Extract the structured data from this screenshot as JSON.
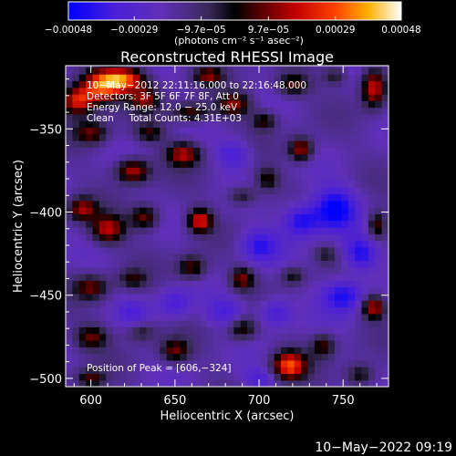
{
  "chart_data": {
    "type": "heatmap",
    "title": "Reconstructed RHESSI Image",
    "xlabel": "Heliocentric X (arcsec)",
    "ylabel": "Heliocentric Y (arcsec)",
    "xlim": [
      585,
      777
    ],
    "ylim": [
      -505,
      -312
    ],
    "x_ticks": [
      {
        "value": 600,
        "label": "600"
      },
      {
        "value": 650,
        "label": "650"
      },
      {
        "value": 700,
        "label": "700"
      },
      {
        "value": 750,
        "label": "750"
      }
    ],
    "y_ticks": [
      {
        "value": -350,
        "label": "−350"
      },
      {
        "value": -400,
        "label": "−400"
      },
      {
        "value": -450,
        "label": "−450"
      },
      {
        "value": -500,
        "label": "−500"
      }
    ],
    "colorbar": {
      "unit_label": "(photons cm⁻² s⁻¹ asec⁻²)",
      "min": -0.00048,
      "max": 0.00048,
      "ticks": [
        {
          "value": -0.00048,
          "label": "−0.00048"
        },
        {
          "value": -0.00029,
          "label": "−0.00029"
        },
        {
          "value": -9.7e-05,
          "label": "−9.7e−05"
        },
        {
          "value": 9.7e-05,
          "label": "9.7e−05"
        },
        {
          "value": 0.00029,
          "label": "0.00029"
        },
        {
          "value": 0.00048,
          "label": "0.00048"
        }
      ]
    },
    "annotations": [
      "10−May−2012 22:11:16.000 to 22:16:48.000",
      "Detectors: 3F 5F 6F 7F 8F, Att 0",
      "Energy Range: 12.0 − 25.0 keV",
      "Clean     Total Counts: 4.31E+03"
    ],
    "peak_label": "Position of Peak = [606,−324]",
    "peak": [
      606,
      -324
    ],
    "sources": [
      {
        "x": 606,
        "y": -324,
        "amp": 1.0,
        "sx": 9,
        "sy": 7
      },
      {
        "x": 592,
        "y": -333,
        "amp": 0.85,
        "sx": 7,
        "sy": 6
      },
      {
        "x": 620,
        "y": -320,
        "amp": 0.9,
        "sx": 9,
        "sy": 5
      },
      {
        "x": 632,
        "y": -332,
        "amp": 0.6,
        "sx": 6,
        "sy": 5
      },
      {
        "x": 670,
        "y": -318,
        "amp": 0.55,
        "sx": 6,
        "sy": 4
      },
      {
        "x": 600,
        "y": -352,
        "amp": 0.55,
        "sx": 7,
        "sy": 5
      },
      {
        "x": 635,
        "y": -352,
        "amp": 0.45,
        "sx": 6,
        "sy": 4
      },
      {
        "x": 625,
        "y": -375,
        "amp": 0.75,
        "sx": 7,
        "sy": 5
      },
      {
        "x": 655,
        "y": -365,
        "amp": 0.7,
        "sx": 7,
        "sy": 5
      },
      {
        "x": 660,
        "y": -340,
        "amp": 0.55,
        "sx": 8,
        "sy": 4
      },
      {
        "x": 685,
        "y": -335,
        "amp": 0.65,
        "sx": 7,
        "sy": 5
      },
      {
        "x": 703,
        "y": -345,
        "amp": 0.45,
        "sx": 5,
        "sy": 4
      },
      {
        "x": 720,
        "y": -323,
        "amp": 0.55,
        "sx": 7,
        "sy": 5
      },
      {
        "x": 745,
        "y": -318,
        "amp": 0.35,
        "sx": 5,
        "sy": 4
      },
      {
        "x": 768,
        "y": -325,
        "amp": 0.8,
        "sx": 5,
        "sy": 8
      },
      {
        "x": 725,
        "y": -362,
        "amp": 0.7,
        "sx": 5,
        "sy": 5
      },
      {
        "x": 595,
        "y": -398,
        "amp": 0.65,
        "sx": 6,
        "sy": 5
      },
      {
        "x": 610,
        "y": -410,
        "amp": 0.75,
        "sx": 7,
        "sy": 6
      },
      {
        "x": 632,
        "y": -403,
        "amp": 0.6,
        "sx": 6,
        "sy": 5
      },
      {
        "x": 665,
        "y": -405,
        "amp": 0.85,
        "sx": 5,
        "sy": 5
      },
      {
        "x": 690,
        "y": -390,
        "amp": 0.4,
        "sx": 6,
        "sy": 4
      },
      {
        "x": 705,
        "y": -380,
        "amp": 0.45,
        "sx": 5,
        "sy": 5
      },
      {
        "x": 600,
        "y": -445,
        "amp": 0.55,
        "sx": 7,
        "sy": 5
      },
      {
        "x": 625,
        "y": -440,
        "amp": 0.4,
        "sx": 6,
        "sy": 4
      },
      {
        "x": 660,
        "y": -433,
        "amp": 0.55,
        "sx": 6,
        "sy": 5
      },
      {
        "x": 690,
        "y": -440,
        "amp": 0.6,
        "sx": 5,
        "sy": 5
      },
      {
        "x": 720,
        "y": -438,
        "amp": 0.4,
        "sx": 5,
        "sy": 4
      },
      {
        "x": 740,
        "y": -425,
        "amp": 0.3,
        "sx": 5,
        "sy": 4
      },
      {
        "x": 770,
        "y": -408,
        "amp": 0.55,
        "sx": 4,
        "sy": 6
      },
      {
        "x": 768,
        "y": -457,
        "amp": 0.75,
        "sx": 5,
        "sy": 5
      },
      {
        "x": 600,
        "y": -475,
        "amp": 0.55,
        "sx": 7,
        "sy": 5
      },
      {
        "x": 630,
        "y": -472,
        "amp": 0.35,
        "sx": 6,
        "sy": 4
      },
      {
        "x": 650,
        "y": -483,
        "amp": 0.55,
        "sx": 6,
        "sy": 5
      },
      {
        "x": 690,
        "y": -470,
        "amp": 0.5,
        "sx": 6,
        "sy": 5
      },
      {
        "x": 718,
        "y": -492,
        "amp": 0.95,
        "sx": 7,
        "sy": 6
      },
      {
        "x": 738,
        "y": -480,
        "amp": 0.5,
        "sx": 5,
        "sy": 5
      },
      {
        "x": 760,
        "y": -498,
        "amp": 0.45,
        "sx": 6,
        "sy": 5
      },
      {
        "x": 600,
        "y": -500,
        "amp": 0.5,
        "sx": 6,
        "sy": 4
      },
      {
        "x": 745,
        "y": -398,
        "amp": -0.65,
        "sx": 9,
        "sy": 9
      },
      {
        "x": 725,
        "y": -405,
        "amp": -0.55,
        "sx": 8,
        "sy": 7
      },
      {
        "x": 700,
        "y": -420,
        "amp": -0.45,
        "sx": 8,
        "sy": 7
      },
      {
        "x": 750,
        "y": -450,
        "amp": -0.55,
        "sx": 9,
        "sy": 7
      },
      {
        "x": 760,
        "y": -425,
        "amp": -0.5,
        "sx": 7,
        "sy": 7
      },
      {
        "x": 680,
        "y": -460,
        "amp": -0.35,
        "sx": 8,
        "sy": 6
      },
      {
        "x": 710,
        "y": -460,
        "amp": -0.4,
        "sx": 7,
        "sy": 6
      },
      {
        "x": 685,
        "y": -365,
        "amp": -0.35,
        "sx": 7,
        "sy": 6
      },
      {
        "x": 650,
        "y": -455,
        "amp": -0.35,
        "sx": 7,
        "sy": 6
      },
      {
        "x": 700,
        "y": -500,
        "amp": -0.3,
        "sx": 7,
        "sy": 5
      },
      {
        "x": 625,
        "y": -460,
        "amp": -0.25,
        "sx": 6,
        "sy": 5
      }
    ]
  },
  "footer_timestamp": "10−May−2022 09:19"
}
